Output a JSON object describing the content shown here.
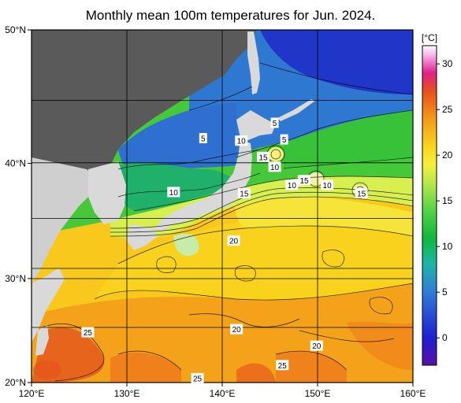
{
  "title": "Monthly mean 100m temperatures for Jun. 2024.",
  "colorbar": {
    "unit": "[°C]",
    "min": -3,
    "max": 32,
    "ticks": [
      "30",
      "25",
      "20",
      "15",
      "10",
      "5",
      "0"
    ],
    "tick_values": [
      30,
      25,
      20,
      15,
      10,
      5,
      0
    ],
    "stops": [
      {
        "t": -3,
        "color": "#5a0fa8"
      },
      {
        "t": 0,
        "color": "#1f1fd0"
      },
      {
        "t": 5,
        "color": "#2e7bd6"
      },
      {
        "t": 8,
        "color": "#1fb4a8"
      },
      {
        "t": 11,
        "color": "#12b83a"
      },
      {
        "t": 14,
        "color": "#55d34a"
      },
      {
        "t": 17,
        "color": "#b9e84c"
      },
      {
        "t": 19,
        "color": "#f6f03c"
      },
      {
        "t": 21,
        "color": "#f8d51c"
      },
      {
        "t": 24,
        "color": "#f39a1a"
      },
      {
        "t": 27,
        "color": "#e8501c"
      },
      {
        "t": 29,
        "color": "#e0208c"
      },
      {
        "t": 31,
        "color": "#f7b8ee"
      },
      {
        "t": 32,
        "color": "#ffffff"
      }
    ]
  },
  "axes": {
    "x_ticks": [
      "120°E",
      "130°E",
      "140°E",
      "150°E",
      "160°E"
    ],
    "x_values": [
      120,
      130,
      140,
      150,
      160
    ],
    "y_ticks": [
      "50°N",
      "40°N",
      "30°N",
      "20°N"
    ],
    "y_values": [
      50,
      40,
      30,
      20
    ],
    "lon_range": [
      120,
      160
    ],
    "lat_range": [
      20,
      50
    ]
  },
  "isotherm_labels": [
    {
      "text": "5",
      "lon": 145.5,
      "lat": 43.2
    },
    {
      "text": "5",
      "lon": 138.0,
      "lat": 42.0
    },
    {
      "text": "10",
      "lon": 142.0,
      "lat": 41.8
    },
    {
      "text": "5",
      "lon": 146.5,
      "lat": 41.9
    },
    {
      "text": "15",
      "lon": 144.3,
      "lat": 40.5
    },
    {
      "text": "10",
      "lon": 145.5,
      "lat": 39.7
    },
    {
      "text": "10",
      "lon": 134.9,
      "lat": 37.6
    },
    {
      "text": "15",
      "lon": 142.3,
      "lat": 37.5
    },
    {
      "text": "10",
      "lon": 147.3,
      "lat": 38.2
    },
    {
      "text": "15",
      "lon": 148.6,
      "lat": 38.6
    },
    {
      "text": "10",
      "lon": 151.0,
      "lat": 38.2
    },
    {
      "text": "15",
      "lon": 154.6,
      "lat": 37.5
    },
    {
      "text": "20",
      "lon": 141.2,
      "lat": 33.4
    },
    {
      "text": "20",
      "lon": 141.5,
      "lat": 25.2
    },
    {
      "text": "25",
      "lon": 125.9,
      "lat": 24.9
    },
    {
      "text": "20",
      "lon": 149.9,
      "lat": 23.6
    },
    {
      "text": "25",
      "lon": 146.3,
      "lat": 21.7
    },
    {
      "text": "25",
      "lon": 137.4,
      "lat": 20.4
    }
  ]
}
